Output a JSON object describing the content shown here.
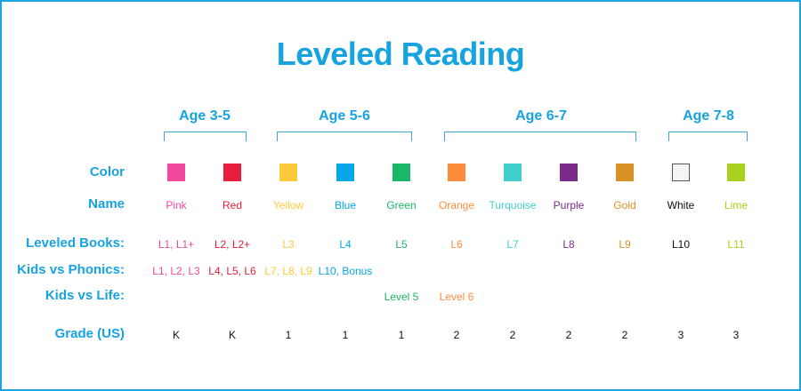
{
  "title": "Leveled Reading",
  "age_groups": [
    {
      "label": "Age 3-5"
    },
    {
      "label": "Age 5-6"
    },
    {
      "label": "Age 6-7"
    },
    {
      "label": "Age 7-8"
    }
  ],
  "row_labels": {
    "color": "Color",
    "name": "Name",
    "leveled_books": "Leveled Books:",
    "kids_vs_phonics": "Kids vs Phonics:",
    "kids_vs_life": "Kids vs Life:",
    "grade": "Grade (US)"
  },
  "levels": [
    {
      "color": "#f0489c",
      "name": "Pink",
      "leveled_books": "L1, L1+",
      "kids_vs_phonics": "L1, L2, L3",
      "kids_vs_life": "",
      "grade": "K"
    },
    {
      "color": "#e41e3c",
      "name": "Red",
      "leveled_books": "L2, L2+",
      "kids_vs_phonics": "L4, L5, L6",
      "kids_vs_life": "",
      "grade": "K"
    },
    {
      "color": "#fdca3b",
      "name": "Yellow",
      "leveled_books": "L3",
      "kids_vs_phonics": "L7, L8, L9",
      "kids_vs_life": "",
      "grade": "1"
    },
    {
      "color": "#05a7e8",
      "name": "Blue",
      "leveled_books": "L4",
      "kids_vs_phonics": "L10, Bonus",
      "kids_vs_life": "",
      "grade": "1"
    },
    {
      "color": "#19b768",
      "name": "Green",
      "leveled_books": "L5",
      "kids_vs_phonics": "",
      "kids_vs_life": "Level 5",
      "grade": "1"
    },
    {
      "color": "#fd8c3c",
      "name": "Orange",
      "leveled_books": "L6",
      "kids_vs_phonics": "",
      "kids_vs_life": "Level 6",
      "grade": "2"
    },
    {
      "color": "#3fcfcc",
      "name": "Turquoise",
      "leveled_books": "L7",
      "kids_vs_phonics": "",
      "kids_vs_life": "",
      "grade": "2"
    },
    {
      "color": "#7c2b8c",
      "name": "Purple",
      "leveled_books": "L8",
      "kids_vs_phonics": "",
      "kids_vs_life": "",
      "grade": "2"
    },
    {
      "color": "#d89125",
      "name": "Gold",
      "leveled_books": "L9",
      "kids_vs_phonics": "",
      "kids_vs_life": "",
      "grade": "2"
    },
    {
      "color": "#f4f4f4",
      "name": "White",
      "leveled_books": "L10",
      "kids_vs_phonics": "",
      "kids_vs_life": "",
      "grade": "3"
    },
    {
      "color": "#a8d21d",
      "name": "Lime",
      "leveled_books": "L11",
      "kids_vs_phonics": "",
      "kids_vs_life": "",
      "grade": "3"
    }
  ],
  "colors": {
    "accent": "#16a3e0",
    "white_text": "#111111",
    "grade_text": "#111111"
  }
}
